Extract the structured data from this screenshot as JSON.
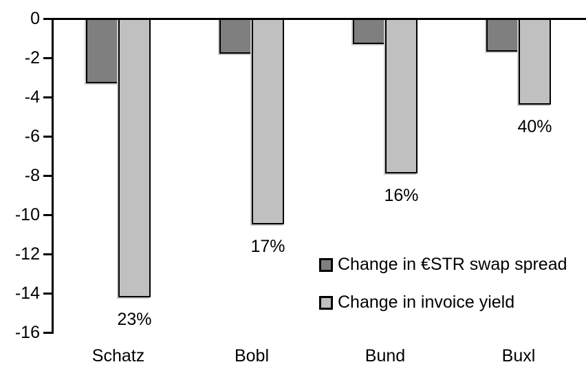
{
  "chart_data": {
    "type": "bar",
    "categories": [
      "Schatz",
      "Bobl",
      "Bund",
      "Buxl"
    ],
    "series": [
      {
        "name": "Change in €STR swap spread",
        "color": "#7f7f7f",
        "values": [
          -3.3,
          -1.8,
          -1.3,
          -1.7
        ]
      },
      {
        "name": "Change in invoice yield",
        "color": "#c0c0c0",
        "values": [
          -14.2,
          -10.5,
          -7.9,
          -4.4
        ]
      }
    ],
    "bar_labels": {
      "attached_to_series": "Change in invoice yield",
      "values": [
        "23%",
        "17%",
        "16%",
        "40%"
      ]
    },
    "title": "",
    "xlabel": "",
    "ylabel": "",
    "ylim": [
      -16,
      0
    ],
    "yticks": [
      0,
      -2,
      -4,
      -6,
      -8,
      -10,
      -12,
      -14,
      -16
    ],
    "ytick_labels": [
      "0",
      "-2",
      "-4",
      "-6",
      "-8",
      "-10",
      "-12",
      "-14",
      "-16"
    ],
    "grid": false,
    "legend_position": "inside-right-middle",
    "bar_border_color": "#000000",
    "axis_color": "#000000",
    "background_color": "#ffffff"
  },
  "legend": {
    "items": [
      {
        "label": "Change in €STR swap spread",
        "swatch_color": "#7f7f7f"
      },
      {
        "label": "Change in invoice yield",
        "swatch_color": "#c0c0c0"
      }
    ]
  }
}
